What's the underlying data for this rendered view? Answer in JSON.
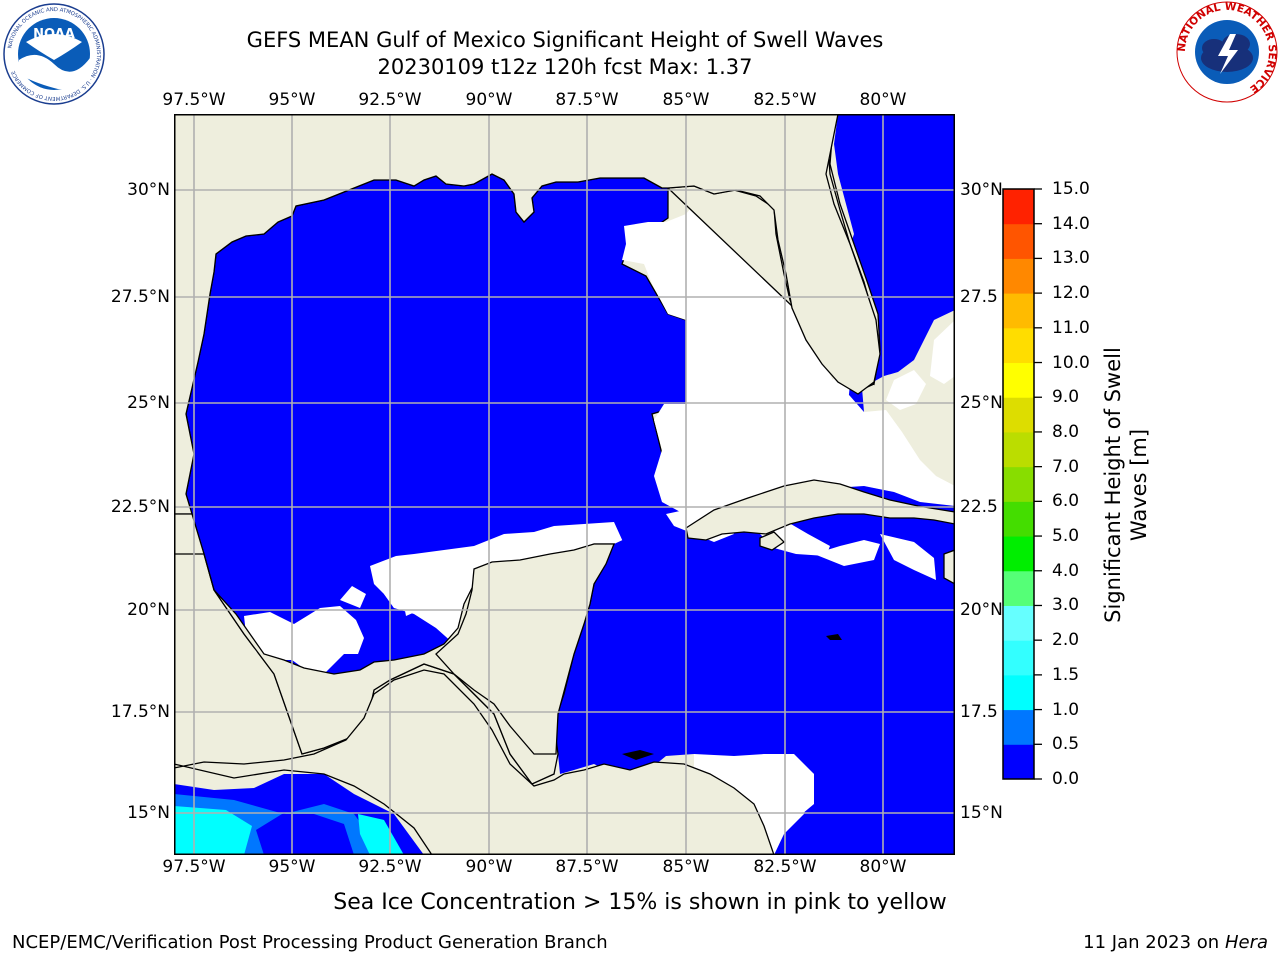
{
  "header": {
    "title_line1": "GEFS MEAN Gulf of Mexico Significant Height of Swell Waves",
    "title_line2": "20230109 t12z 120h fcst   Max: 1.37"
  },
  "logos": {
    "left": {
      "name": "NOAA",
      "ring_text": "NATIONAL OCEANIC AND ATMOSPHERIC ADMINISTRATION · U.S. DEPARTMENT OF COMMERCE"
    },
    "right": {
      "ring_text": "NATIONAL WEATHER SERVICE"
    }
  },
  "map": {
    "lon_labels": [
      "97.5°W",
      "95°W",
      "92.5°W",
      "90°W",
      "87.5°W",
      "85°W",
      "82.5°W",
      "80°W"
    ],
    "lat_labels_left": [
      "30°N",
      "27.5°N",
      "25°N",
      "22.5°N",
      "20°N",
      "17.5°N",
      "15°N"
    ],
    "lat_labels_right": [
      "30°N",
      "27.5",
      "25°N",
      "22.5",
      "20°N",
      "17.5",
      "15°N"
    ],
    "colors": {
      "land": "#eeeedd",
      "ocean": "#0000ff",
      "grid": "#b0b0b0",
      "calm": "#ffffff"
    }
  },
  "colorbar": {
    "label_line1": "Significant Height of Swell",
    "label_line2": "Waves [m]",
    "ticks": [
      "0.0",
      "0.5",
      "1.0",
      "1.5",
      "2.0",
      "3.0",
      "4.0",
      "5.0",
      "6.0",
      "7.0",
      "8.0",
      "9.0",
      "10.0",
      "11.0",
      "12.0",
      "13.0",
      "14.0",
      "15.0"
    ],
    "colors": [
      "#0000ff",
      "#0077ff",
      "#00ffff",
      "#33ffff",
      "#66ffff",
      "#99ffff",
      "#55ff77",
      "#00ee00",
      "#44dd00",
      "#88dd00",
      "#bbdd00",
      "#dddd00",
      "#ffff00",
      "#ffdd00",
      "#ffbb00",
      "#ff8800",
      "#ff5500",
      "#ff2200",
      "#ff0000"
    ]
  },
  "caption": "Sea Ice Concentration > 15% is shown in pink to yellow",
  "footer": {
    "left": "NCEP/EMC/Verification Post Processing Product Generation Branch",
    "date": "11 Jan 2023 on ",
    "machine": "Hera"
  }
}
